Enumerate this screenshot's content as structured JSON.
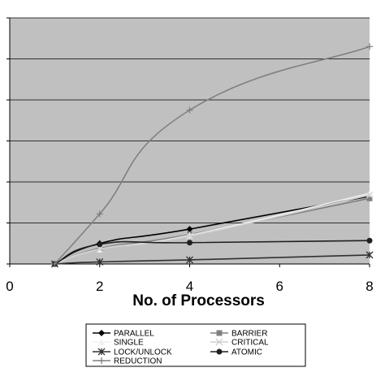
{
  "chart_data": {
    "type": "line",
    "title": "",
    "xlabel": "No. of Processors",
    "ylabel": "",
    "xlim": [
      0,
      8
    ],
    "ylim": [
      0,
      6
    ],
    "x_ticks": [
      "0",
      "2",
      "4",
      "6",
      "8"
    ],
    "y_ticks_labeled": false,
    "grid": true,
    "plot_background": "#c0c0c0",
    "legend_position": "bottom",
    "x": [
      1,
      2,
      4,
      8
    ],
    "series": [
      {
        "name": "PARALLEL",
        "values": [
          0,
          0.5,
          0.85,
          1.65
        ],
        "color": "#000000",
        "marker": "diamond"
      },
      {
        "name": "BARRIER",
        "values": [
          0,
          0.38,
          0.72,
          1.6
        ],
        "color": "#808080",
        "marker": "square"
      },
      {
        "name": "SINGLE",
        "values": [
          0,
          0.36,
          0.7,
          1.72
        ],
        "color": "#f2f2f2",
        "marker": "triangle"
      },
      {
        "name": "CRITICAL",
        "values": [
          0,
          0.36,
          0.68,
          1.68
        ],
        "color": "#d0d0d0",
        "marker": "x"
      },
      {
        "name": "LOCK/UNLOCK",
        "values": [
          0,
          0.05,
          0.1,
          0.22
        ],
        "color": "#303030",
        "marker": "star"
      },
      {
        "name": "ATOMIC",
        "values": [
          0,
          0.48,
          0.52,
          0.57
        ],
        "color": "#202020",
        "marker": "circle"
      },
      {
        "name": "REDUCTION",
        "values": [
          0,
          1.22,
          3.75,
          5.3
        ],
        "color": "#808080",
        "marker": "plus"
      }
    ]
  }
}
